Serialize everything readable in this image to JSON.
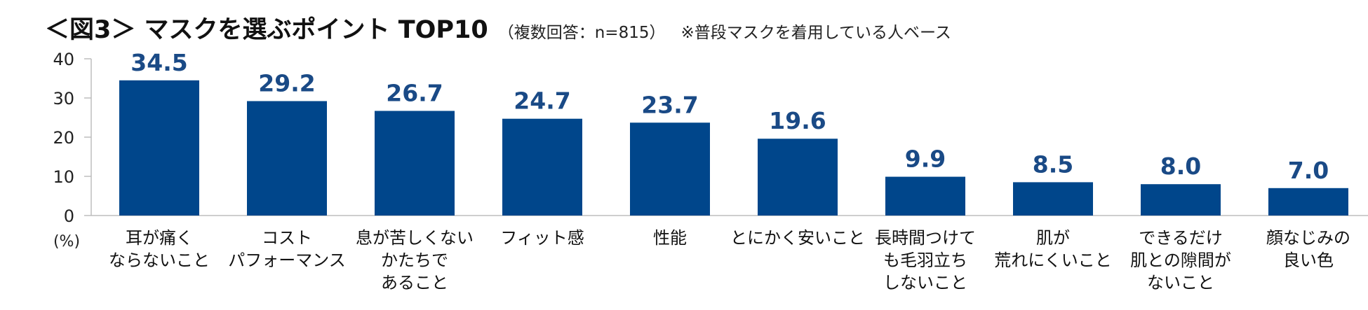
{
  "header": {
    "title": "＜図3＞ マスクを選ぶポイント TOP10",
    "subtitle": "（複数回答：n=815）",
    "note": "※普段マスクを着用している人ベース"
  },
  "chart_data": {
    "type": "bar",
    "categories": [
      [
        "耳が痛く",
        "ならないこと"
      ],
      [
        "コスト",
        "パフォーマンス"
      ],
      [
        "息が苦しくない",
        "かたちで",
        "あること"
      ],
      [
        "フィット感"
      ],
      [
        "性能"
      ],
      [
        "とにかく安いこと"
      ],
      [
        "長時間つけて",
        "も毛羽立ち",
        "しないこと"
      ],
      [
        "肌が",
        "荒れにくいこと"
      ],
      [
        "できるだけ",
        "肌との隙間が",
        "ないこと"
      ],
      [
        "顔なじみの",
        "良い色"
      ]
    ],
    "values": [
      34.5,
      29.2,
      26.7,
      24.7,
      23.7,
      19.6,
      9.9,
      8.5,
      8.0,
      7.0
    ],
    "value_labels": [
      "34.5",
      "29.2",
      "26.7",
      "24.7",
      "23.7",
      "19.6",
      "9.9",
      "8.5",
      "8.0",
      "7.0"
    ],
    "yticks": [
      "0",
      "10",
      "20",
      "30",
      "40"
    ],
    "ylim": [
      0,
      40
    ],
    "ylabel": "(%)",
    "bar_color": "#00468b",
    "value_color": "#1a4a86",
    "grid": false
  }
}
